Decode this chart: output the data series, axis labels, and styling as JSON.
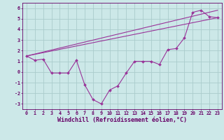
{
  "xlabel": "Windchill (Refroidissement éolien,°C)",
  "background_color": "#cce8e8",
  "line_color": "#993399",
  "grid_color": "#aacccc",
  "xlim": [
    -0.5,
    23.5
  ],
  "ylim": [
    -3.5,
    6.5
  ],
  "xticks": [
    0,
    1,
    2,
    3,
    4,
    5,
    6,
    7,
    8,
    9,
    10,
    11,
    12,
    13,
    14,
    15,
    16,
    17,
    18,
    19,
    20,
    21,
    22,
    23
  ],
  "yticks": [
    -3,
    -2,
    -1,
    0,
    1,
    2,
    3,
    4,
    5,
    6
  ],
  "line1_x": [
    0,
    1,
    2,
    3,
    4,
    5,
    6,
    7,
    8,
    9,
    10,
    11,
    12,
    13,
    14,
    15,
    16,
    17,
    18,
    19,
    20,
    21,
    22,
    23
  ],
  "line1_y": [
    1.5,
    1.1,
    1.2,
    -0.1,
    -0.1,
    -0.1,
    1.1,
    -1.2,
    -2.6,
    -3.0,
    -1.7,
    -1.3,
    -0.1,
    1.0,
    1.0,
    1.0,
    0.7,
    2.1,
    2.2,
    3.2,
    5.6,
    5.8,
    5.2,
    5.1
  ],
  "line2_x": [
    0,
    23
  ],
  "line2_y": [
    1.5,
    5.1
  ],
  "line3_x": [
    0,
    23
  ],
  "line3_y": [
    1.5,
    5.8
  ],
  "tick_fontsize": 4.8,
  "xlabel_fontsize": 6.0,
  "tick_color": "#660066",
  "spine_color": "#660066"
}
